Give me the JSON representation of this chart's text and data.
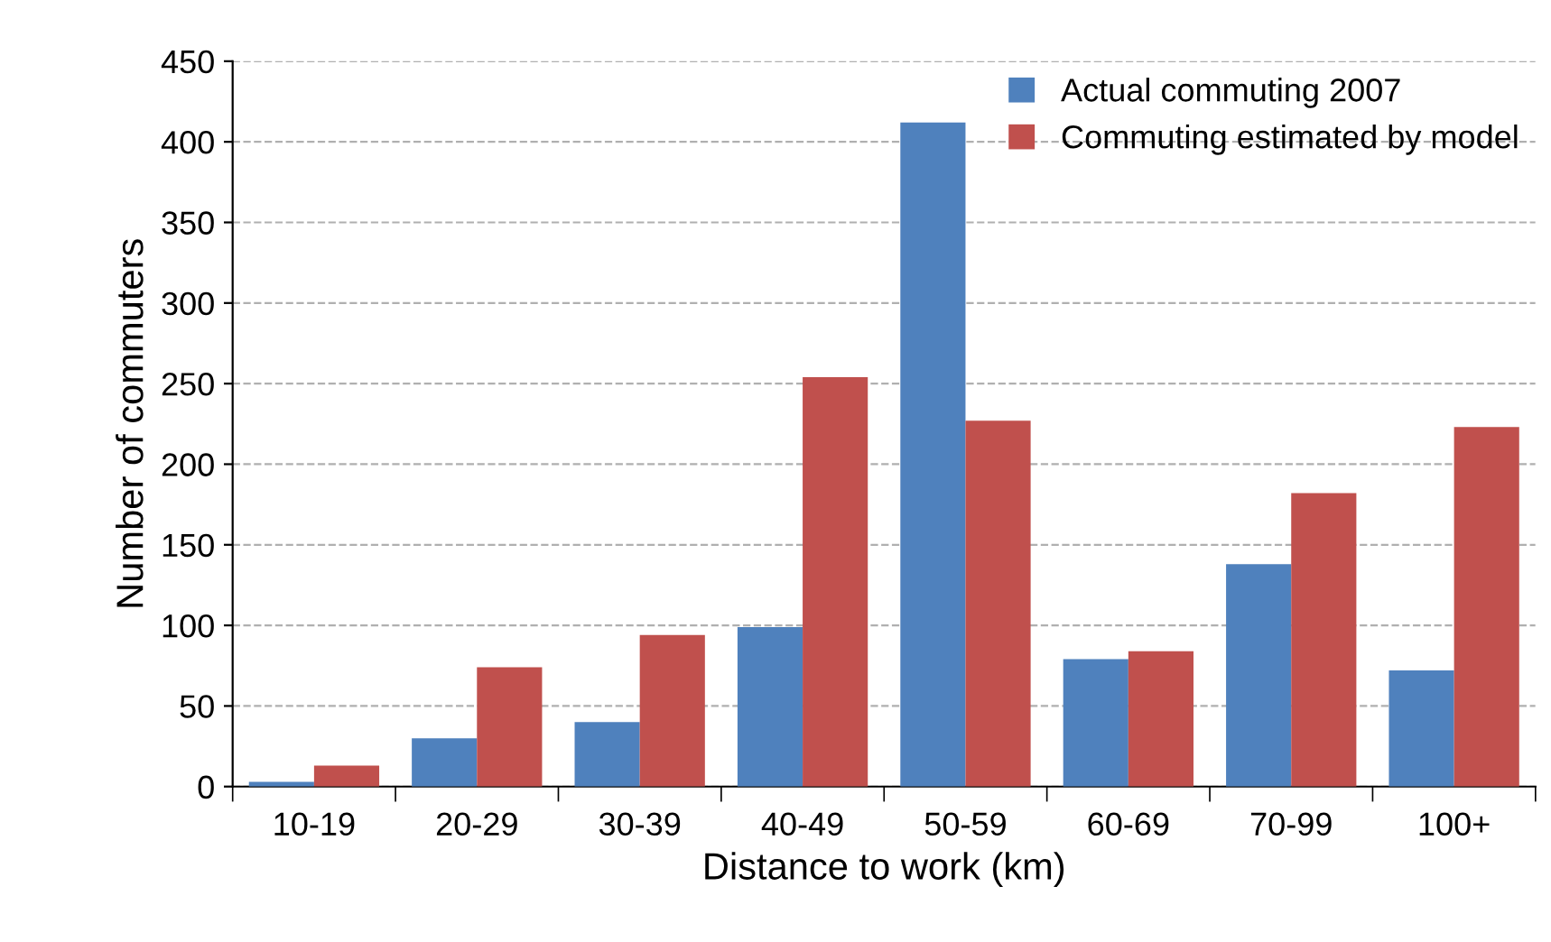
{
  "chart_data": {
    "type": "bar",
    "xlabel": "Distance to work (km)",
    "ylabel": "Number of commuters",
    "categories": [
      "10-19",
      "20-29",
      "30-39",
      "40-49",
      "50-59",
      "60-69",
      "70-99",
      "100+"
    ],
    "series": [
      {
        "name": "Actual commuting 2007",
        "color": "#4f81bd",
        "values": [
          3,
          30,
          40,
          99,
          412,
          79,
          138,
          72
        ]
      },
      {
        "name": "Commuting estimated by model",
        "color": "#c0504d",
        "values": [
          13,
          74,
          94,
          254,
          227,
          84,
          182,
          223
        ]
      }
    ],
    "ylim": [
      0,
      450
    ],
    "yticks": [
      0,
      50,
      100,
      150,
      200,
      250,
      300,
      350,
      400,
      450
    ],
    "grid": "y",
    "legend": "top right"
  }
}
